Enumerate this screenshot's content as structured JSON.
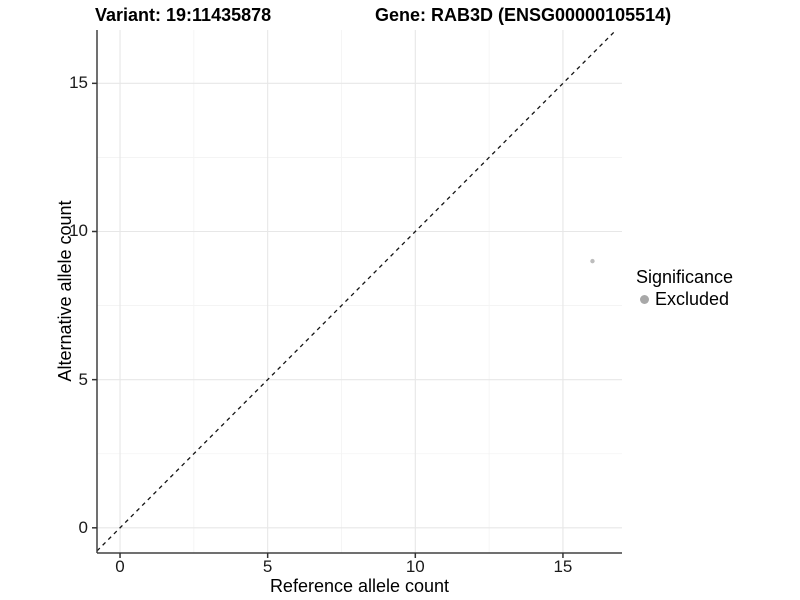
{
  "chart_data": {
    "type": "scatter",
    "title_left": "Variant: 19:11435878",
    "title_right": "Gene: RAB3D (ENSG00000105514)",
    "xlabel": "Reference allele count",
    "ylabel": "Alternative allele count",
    "xlim": [
      -0.78,
      17.0
    ],
    "ylim": [
      -0.85,
      16.8
    ],
    "x_ticks": [
      0,
      5,
      10,
      15
    ],
    "y_ticks": [
      0,
      5,
      10,
      15
    ],
    "x_minor_ticks": [
      2.5,
      7.5,
      12.5
    ],
    "y_minor_ticks": [
      2.5,
      7.5,
      12.5
    ],
    "grid": "major+minor",
    "series": [
      {
        "name": "Excluded",
        "points": [
          {
            "x": 16,
            "y": 9
          }
        ],
        "color": "#bdbdbd",
        "point_radius": 2.2
      }
    ],
    "reference_line": {
      "equation": "y = x",
      "style": "dashed",
      "from": [
        -0.78,
        -0.78
      ],
      "to": [
        16.8,
        16.8
      ],
      "color": "#141414"
    },
    "legend": {
      "title": "Significance",
      "position": "right",
      "items": [
        {
          "label": "Excluded",
          "color": "#a8a8a8"
        }
      ]
    },
    "colors": {
      "grid_major": "#e7e7e7",
      "grid_minor": "#f3f3f3",
      "axis_line": "#404040",
      "tick": "#333333",
      "background": "#ffffff"
    }
  }
}
